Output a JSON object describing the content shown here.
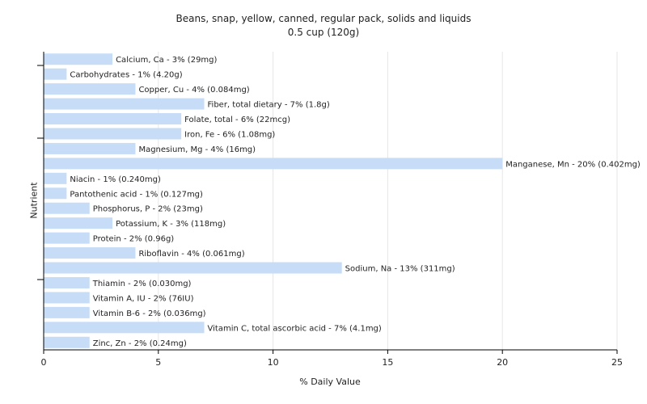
{
  "chart_data": {
    "type": "bar",
    "orientation": "horizontal",
    "title": "Beans, snap, yellow, canned, regular pack, solids and liquids",
    "subtitle": "0.5 cup (120g)",
    "xlabel": "% Daily Value",
    "ylabel": "Nutrient",
    "xlim": [
      0,
      25
    ],
    "xticks": [
      "0",
      "5",
      "10",
      "15",
      "20",
      "25"
    ],
    "grid": true,
    "bar_color": "#c6dcf7",
    "categories": [
      "Calcium, Ca",
      "Carbohydrates",
      "Copper, Cu",
      "Fiber, total dietary",
      "Folate, total",
      "Iron, Fe",
      "Magnesium, Mg",
      "Manganese, Mn",
      "Niacin",
      "Pantothenic acid",
      "Phosphorus, P",
      "Potassium, K",
      "Protein",
      "Riboflavin",
      "Sodium, Na",
      "Thiamin",
      "Vitamin A, IU",
      "Vitamin B-6",
      "Vitamin C, total ascorbic acid",
      "Zinc, Zn"
    ],
    "values": [
      3,
      1,
      4,
      7,
      6,
      6,
      4,
      20,
      1,
      1,
      2,
      3,
      2,
      4,
      13,
      2,
      2,
      2,
      7,
      2
    ],
    "labels": [
      "Calcium, Ca - 3% (29mg)",
      "Carbohydrates - 1% (4.20g)",
      "Copper, Cu - 4% (0.084mg)",
      "Fiber, total dietary - 7% (1.8g)",
      "Folate, total - 6% (22mcg)",
      "Iron, Fe - 6% (1.08mg)",
      "Magnesium, Mg - 4% (16mg)",
      "Manganese, Mn - 20% (0.402mg)",
      "Niacin - 1% (0.240mg)",
      "Pantothenic acid - 1% (0.127mg)",
      "Phosphorus, P - 2% (23mg)",
      "Potassium, K - 3% (118mg)",
      "Protein - 2% (0.96g)",
      "Riboflavin - 4% (0.061mg)",
      "Sodium, Na - 13% (311mg)",
      "Thiamin - 2% (0.030mg)",
      "Vitamin A, IU - 2% (76IU)",
      "Vitamin B-6 - 2% (0.036mg)",
      "Vitamin C, total ascorbic acid - 7% (4.1mg)",
      "Zinc, Zn - 2% (0.24mg)"
    ]
  }
}
